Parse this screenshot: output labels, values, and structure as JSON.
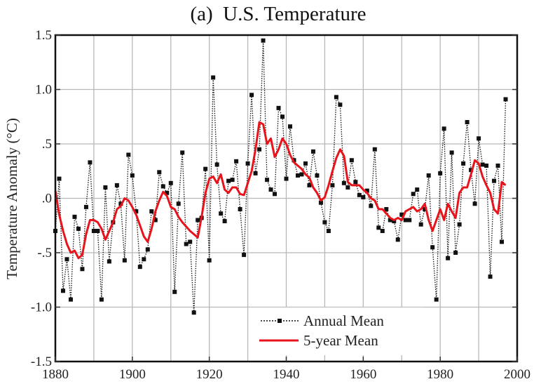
{
  "chart_data": {
    "type": "line",
    "title": "(a)  U.S. Temperature",
    "xlabel": "",
    "ylabel": "Temperature Anomaly (°C)",
    "xlim": [
      1880,
      2000
    ],
    "ylim": [
      -1.5,
      1.5
    ],
    "grid": true,
    "legend_position": "bottom-center",
    "x_ticks": [
      1880,
      1900,
      1920,
      1940,
      1960,
      1980,
      2000
    ],
    "x_tick_labels": [
      "1880",
      "1900",
      "1920",
      "1940",
      "1960",
      "1980",
      "2000"
    ],
    "y_ticks": [
      -1.5,
      -1.0,
      -0.5,
      0.0,
      0.5,
      1.0,
      1.5
    ],
    "y_tick_labels": [
      "-1.5",
      "-1.0",
      "-.5",
      ".0",
      ".5",
      "1.0",
      "1.5"
    ],
    "colors": {
      "annual": "#111111",
      "five_year": "#e8141c",
      "grid": "#b8b8b8",
      "frame": "#111111"
    },
    "series": [
      {
        "name": "Annual Mean",
        "style": "dotted-with-square-markers",
        "x": [
          1880,
          1881,
          1882,
          1883,
          1884,
          1885,
          1886,
          1887,
          1888,
          1889,
          1890,
          1891,
          1892,
          1893,
          1894,
          1895,
          1896,
          1897,
          1898,
          1899,
          1900,
          1901,
          1902,
          1903,
          1904,
          1905,
          1906,
          1907,
          1908,
          1909,
          1910,
          1911,
          1912,
          1913,
          1914,
          1915,
          1916,
          1917,
          1918,
          1919,
          1920,
          1921,
          1922,
          1923,
          1924,
          1925,
          1926,
          1927,
          1928,
          1929,
          1930,
          1931,
          1932,
          1933,
          1934,
          1935,
          1936,
          1937,
          1938,
          1939,
          1940,
          1941,
          1942,
          1943,
          1944,
          1945,
          1946,
          1947,
          1948,
          1949,
          1950,
          1951,
          1952,
          1953,
          1954,
          1955,
          1956,
          1957,
          1958,
          1959,
          1960,
          1961,
          1962,
          1963,
          1964,
          1965,
          1966,
          1967,
          1968,
          1969,
          1970,
          1971,
          1972,
          1973,
          1974,
          1975,
          1976,
          1977,
          1978,
          1979,
          1980,
          1981,
          1982,
          1983,
          1984,
          1985,
          1986,
          1987,
          1988,
          1989,
          1990,
          1991,
          1992,
          1993,
          1994,
          1995,
          1996,
          1997
        ],
        "values": [
          -0.3,
          0.18,
          -0.85,
          -0.56,
          -0.93,
          -0.17,
          -0.28,
          -0.65,
          -0.08,
          0.33,
          -0.3,
          -0.3,
          -0.93,
          0.1,
          -0.58,
          -0.22,
          0.12,
          -0.05,
          -0.57,
          0.4,
          0.21,
          -0.12,
          -0.63,
          -0.56,
          -0.47,
          -0.12,
          -0.2,
          0.24,
          0.11,
          0.05,
          0.14,
          -0.86,
          -0.05,
          0.42,
          -0.42,
          -0.4,
          -1.05,
          -0.2,
          -0.18,
          0.27,
          -0.57,
          1.11,
          0.31,
          -0.14,
          -0.21,
          0.16,
          0.17,
          0.34,
          -0.1,
          -0.52,
          0.32,
          0.95,
          0.23,
          0.45,
          1.45,
          0.17,
          0.08,
          0.04,
          0.83,
          0.75,
          0.18,
          0.66,
          0.35,
          0.21,
          0.22,
          0.32,
          0.12,
          0.43,
          0.21,
          -0.04,
          -0.22,
          -0.3,
          0.12,
          0.93,
          0.86,
          0.14,
          0.1,
          0.35,
          0.15,
          0.03,
          0.01,
          0.07,
          -0.07,
          0.45,
          -0.27,
          -0.3,
          -0.1,
          -0.2,
          -0.21,
          -0.38,
          -0.15,
          -0.2,
          -0.2,
          0.04,
          0.08,
          -0.24,
          -0.1,
          0.21,
          -0.45,
          -0.93,
          0.23,
          0.64,
          -0.55,
          0.42,
          -0.5,
          -0.24,
          0.32,
          0.7,
          0.26,
          -0.05,
          0.55,
          0.31,
          0.3,
          -0.72,
          0.16,
          0.3,
          -0.4,
          0.91
        ]
      },
      {
        "name": "5-year Mean",
        "style": "solid",
        "x": [
          1880,
          1881,
          1882,
          1883,
          1884,
          1885,
          1886,
          1887,
          1888,
          1889,
          1890,
          1891,
          1892,
          1893,
          1894,
          1895,
          1896,
          1897,
          1898,
          1899,
          1900,
          1901,
          1902,
          1903,
          1904,
          1905,
          1906,
          1907,
          1908,
          1909,
          1910,
          1911,
          1912,
          1913,
          1914,
          1915,
          1916,
          1917,
          1918,
          1919,
          1920,
          1921,
          1922,
          1923,
          1924,
          1925,
          1926,
          1927,
          1928,
          1929,
          1930,
          1931,
          1932,
          1933,
          1934,
          1935,
          1936,
          1937,
          1938,
          1939,
          1940,
          1941,
          1942,
          1943,
          1944,
          1945,
          1946,
          1947,
          1948,
          1949,
          1950,
          1951,
          1952,
          1953,
          1954,
          1955,
          1956,
          1957,
          1958,
          1959,
          1960,
          1961,
          1962,
          1963,
          1964,
          1965,
          1966,
          1967,
          1968,
          1969,
          1970,
          1971,
          1972,
          1973,
          1974,
          1975,
          1976,
          1977,
          1978,
          1979,
          1980,
          1981,
          1982,
          1983,
          1984,
          1985,
          1986,
          1987,
          1988,
          1989,
          1990,
          1991,
          1992,
          1993,
          1994,
          1995,
          1996,
          1997
        ],
        "values": [
          0.07,
          -0.15,
          -0.3,
          -0.42,
          -0.5,
          -0.48,
          -0.55,
          -0.52,
          -0.33,
          -0.2,
          -0.2,
          -0.22,
          -0.28,
          -0.38,
          -0.3,
          -0.22,
          -0.1,
          -0.07,
          0.0,
          -0.02,
          -0.08,
          -0.15,
          -0.25,
          -0.35,
          -0.4,
          -0.28,
          -0.12,
          -0.02,
          0.06,
          0.02,
          -0.08,
          -0.1,
          -0.17,
          -0.22,
          -0.26,
          -0.3,
          -0.33,
          -0.36,
          -0.17,
          0.05,
          0.18,
          0.2,
          0.14,
          0.22,
          0.08,
          0.05,
          0.1,
          0.1,
          0.04,
          0.03,
          0.14,
          0.25,
          0.45,
          0.7,
          0.68,
          0.5,
          0.55,
          0.38,
          0.45,
          0.55,
          0.5,
          0.4,
          0.33,
          0.3,
          0.27,
          0.22,
          0.19,
          0.1,
          0.05,
          -0.02,
          0.01,
          0.12,
          0.25,
          0.37,
          0.45,
          0.39,
          0.15,
          0.12,
          0.12,
          0.12,
          0.08,
          0.05,
          0.0,
          -0.02,
          -0.1,
          -0.1,
          -0.14,
          -0.18,
          -0.2,
          -0.18,
          -0.2,
          -0.12,
          -0.1,
          -0.08,
          -0.12,
          -0.1,
          -0.05,
          -0.2,
          -0.3,
          -0.2,
          -0.1,
          -0.2,
          -0.05,
          -0.12,
          -0.18,
          0.05,
          0.1,
          0.1,
          0.22,
          0.35,
          0.32,
          0.2,
          0.12,
          0.05,
          -0.1,
          -0.14,
          0.15,
          0.12
        ]
      }
    ],
    "legend": [
      {
        "label": "Annual Mean",
        "series": 0
      },
      {
        "label": "5-year Mean",
        "series": 1
      }
    ]
  }
}
